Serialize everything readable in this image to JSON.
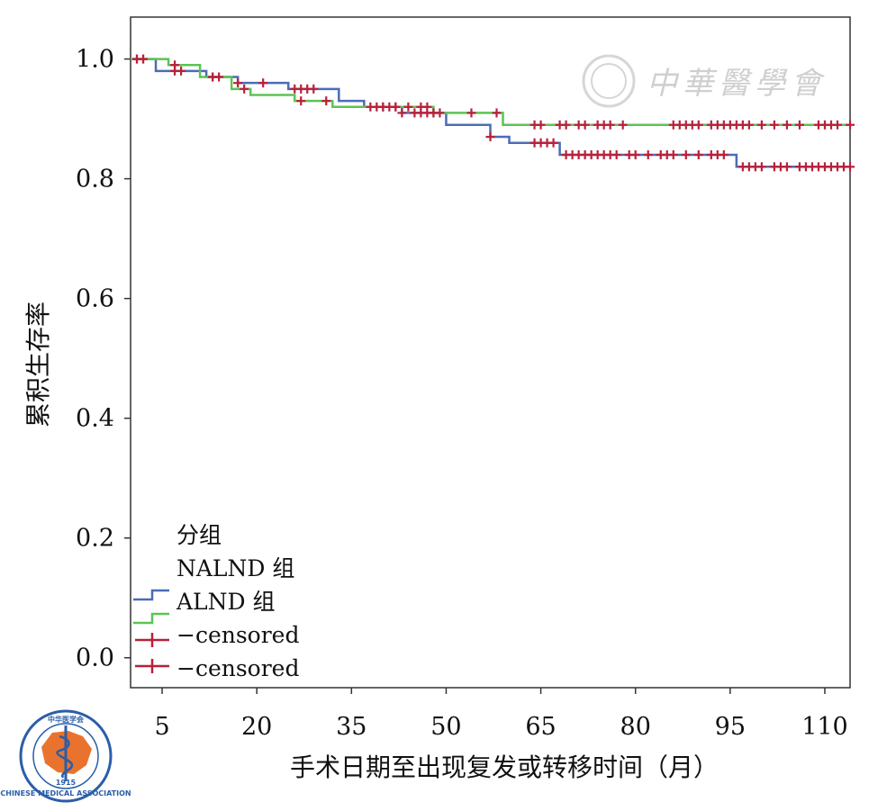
{
  "chart_data": {
    "type": "line",
    "step": true,
    "xlabel": "手术日期至出现复发或转移时间（月）",
    "ylabel": "累积生存率",
    "xlim": [
      0,
      114
    ],
    "ylim": [
      -0.05,
      1.07
    ],
    "x_ticks": [
      5,
      20,
      35,
      50,
      65,
      80,
      95,
      110
    ],
    "y_ticks": [
      0.0,
      0.2,
      0.4,
      0.6,
      0.8,
      1.0
    ],
    "y_tick_labels": [
      "0.0",
      "0.2",
      "0.4",
      "0.6",
      "0.8",
      "1.0"
    ],
    "grid": false,
    "legend": {
      "title": "分组",
      "position": "bottom-left",
      "entries": [
        {
          "label": "NALND 组"
        },
        {
          "label": "ALND 组"
        },
        {
          "label": "−censored"
        },
        {
          "label": "−censored"
        }
      ]
    },
    "series": [
      {
        "name": "NALND 组",
        "color": "#4b6cb7",
        "steps": [
          [
            0,
            1.0
          ],
          [
            4,
            0.98
          ],
          [
            12,
            0.97
          ],
          [
            17,
            0.96
          ],
          [
            25,
            0.95
          ],
          [
            33,
            0.93
          ],
          [
            37,
            0.92
          ],
          [
            43,
            0.91
          ],
          [
            50,
            0.89
          ],
          [
            57,
            0.87
          ],
          [
            60,
            0.86
          ],
          [
            68,
            0.84
          ],
          [
            96,
            0.82
          ],
          [
            114,
            0.82
          ]
        ],
        "censored": [
          1,
          2,
          7,
          8,
          13,
          14,
          17,
          21,
          26,
          27,
          28,
          29,
          40,
          42,
          43,
          45,
          46,
          47,
          48,
          57,
          64,
          65,
          66,
          67,
          69,
          70,
          71,
          72,
          73,
          74,
          75,
          76,
          77,
          79,
          80,
          82,
          84,
          85,
          86,
          88,
          90,
          92,
          93,
          94,
          97,
          98,
          99,
          100,
          102,
          103,
          104,
          106,
          107,
          108,
          109,
          110,
          111,
          112,
          113,
          114
        ]
      },
      {
        "name": "ALND 组",
        "color": "#5cc454",
        "steps": [
          [
            0,
            1.0
          ],
          [
            6,
            0.99
          ],
          [
            11,
            0.97
          ],
          [
            16,
            0.95
          ],
          [
            19,
            0.94
          ],
          [
            26,
            0.93
          ],
          [
            32,
            0.92
          ],
          [
            41,
            0.92
          ],
          [
            48,
            0.91
          ],
          [
            59,
            0.89
          ],
          [
            114,
            0.89
          ]
        ],
        "censored": [
          1,
          2,
          7,
          13,
          18,
          27,
          31,
          38,
          39,
          40,
          41,
          42,
          44,
          46,
          47,
          48,
          49,
          54,
          58,
          64,
          65,
          68,
          69,
          71,
          72,
          74,
          75,
          76,
          78,
          86,
          87,
          88,
          89,
          90,
          92,
          93,
          94,
          95,
          96,
          97,
          98,
          100,
          102,
          104,
          106,
          109,
          110,
          111,
          112,
          114
        ]
      }
    ]
  },
  "watermark": {
    "text": "中華醫學會"
  },
  "logo": {
    "text": "中华医学会",
    "subtext": "CHINESE MEDICAL ASSOCIATION",
    "year": "1915"
  }
}
